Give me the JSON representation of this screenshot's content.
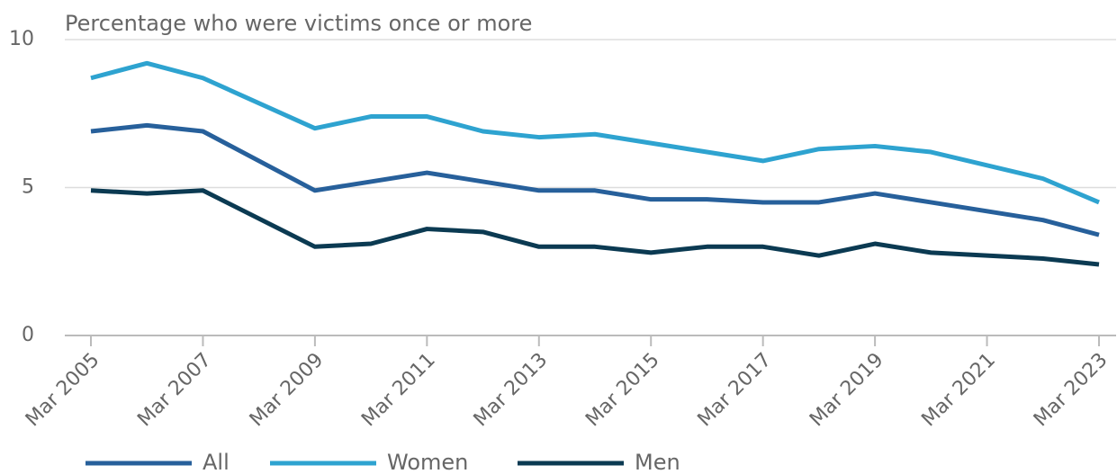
{
  "chart_data": {
    "type": "line",
    "title": "Percentage who were victims once or more",
    "x": [
      "Mar 2005",
      "Mar 2006",
      "Mar 2007",
      "Mar 2009",
      "Mar 2010",
      "Mar 2011",
      "Mar 2012",
      "Mar 2013",
      "Mar 2014",
      "Mar 2015",
      "Mar 2016",
      "Mar 2017",
      "Mar 2018",
      "Mar 2019",
      "Mar 2020",
      "Mar 2022",
      "Mar 2023"
    ],
    "xticks": [
      "Mar 2005",
      "Mar 2007",
      "Mar 2009",
      "Mar 2011",
      "Mar 2013",
      "Mar 2015",
      "Mar 2017",
      "Mar 2019",
      "Mar 2021",
      "Mar 2023"
    ],
    "series": [
      {
        "name": "All",
        "color": "#27609b",
        "values": [
          6.9,
          7.1,
          6.9,
          4.9,
          5.2,
          5.5,
          5.2,
          4.9,
          4.9,
          4.6,
          4.6,
          4.5,
          4.5,
          4.8,
          4.5,
          3.9,
          3.4
        ]
      },
      {
        "name": "Women",
        "color": "#2ea3d0",
        "values": [
          8.7,
          9.2,
          8.7,
          7.0,
          7.4,
          7.4,
          6.9,
          6.7,
          6.8,
          6.5,
          6.2,
          5.9,
          6.3,
          6.4,
          6.2,
          5.3,
          4.5
        ]
      },
      {
        "name": "Men",
        "color": "#0b3a52",
        "values": [
          4.9,
          4.8,
          4.9,
          3.0,
          3.1,
          3.6,
          3.5,
          3.0,
          3.0,
          2.8,
          3.0,
          3.0,
          2.7,
          3.1,
          2.8,
          2.6,
          2.4
        ]
      }
    ],
    "ylim": [
      0,
      10
    ],
    "yticks": [
      0,
      5,
      10
    ],
    "grid": true,
    "legend": "bottom"
  }
}
